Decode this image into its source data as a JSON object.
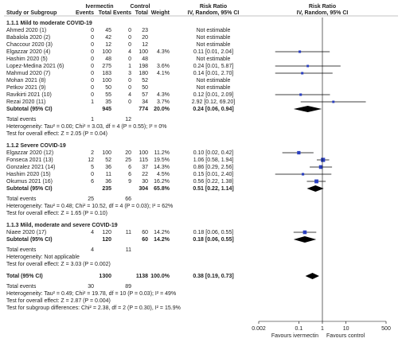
{
  "header": {
    "experimental": "Ivermectin",
    "control": "Control",
    "rr_text": "Risk Ratio",
    "rr_plot": "Risk Ratio",
    "columns": [
      "Study or Subgroup",
      "Events",
      "Total",
      "Events",
      "Total",
      "Weight",
      "IV, Random, 95% CI",
      "IV, Random, 95% CI"
    ]
  },
  "colors": {
    "study": "#2a3fc0",
    "diamond": "#000000"
  },
  "groups": [
    {
      "title": "1.1.1 Mild to moderate COVID-19",
      "studies": [
        {
          "study": "Ahmed 2020 (1)",
          "ie": 0,
          "it": 45,
          "ce": 0,
          "ct": 23,
          "ci": "Not estimable"
        },
        {
          "study": "Babalola 2020 (2)",
          "ie": 0,
          "it": 42,
          "ce": 0,
          "ct": 20,
          "ci": "Not estimable"
        },
        {
          "study": "Chaccour 2020 (3)",
          "ie": 0,
          "it": 12,
          "ce": 0,
          "ct": 12,
          "ci": "Not estimable"
        },
        {
          "study": "Elgazzar 2020 (4)",
          "ie": 0,
          "it": 100,
          "ce": 4,
          "ct": 100,
          "weight": {
            "value": 4.3,
            "label": "4.3%"
          },
          "ci": "0.11 [0.01, 2.04]",
          "rr": 0.11,
          "lo": 0.01,
          "hi": 2.04
        },
        {
          "study": "Hashim 2020 (5)",
          "ie": 0,
          "it": 48,
          "ce": 0,
          "ct": 48,
          "ci": "Not estimable"
        },
        {
          "study": "Lopez-Medina 2021 (6)",
          "ie": 0,
          "it": 275,
          "ce": 1,
          "ct": 198,
          "weight": {
            "value": 3.6,
            "label": "3.6%"
          },
          "ci": "0.24 [0.01, 5.87]",
          "rr": 0.24,
          "lo": 0.01,
          "hi": 5.87
        },
        {
          "study": "Mahmud 2020 (7)",
          "ie": 0,
          "it": 183,
          "ce": 3,
          "ct": 180,
          "weight": {
            "value": 4.1,
            "label": "4.1%"
          },
          "ci": "0.14 [0.01, 2.70]",
          "rr": 0.14,
          "lo": 0.01,
          "hi": 2.7
        },
        {
          "study": "Mohan 2021 (8)",
          "ie": 0,
          "it": 100,
          "ce": 0,
          "ct": 52,
          "ci": "Not estimable"
        },
        {
          "study": "Petkov 2021 (9)",
          "ie": 0,
          "it": 50,
          "ce": 0,
          "ct": 50,
          "ci": "Not estimable"
        },
        {
          "study": "Ravikirti 2021 (10)",
          "ie": 0,
          "it": 55,
          "ce": 4,
          "ct": 57,
          "weight": {
            "value": 4.3,
            "label": "4.3%"
          },
          "ci": "0.12 [0.01, 2.09]",
          "rr": 0.12,
          "lo": 0.01,
          "hi": 2.09
        },
        {
          "study": "Rezai 2020 (11)",
          "ie": 1,
          "it": 35,
          "ce": 0,
          "ct": 34,
          "weight": {
            "value": 3.7,
            "label": "3.7%"
          },
          "ci": "2.92 [0.12, 69.20]",
          "rr": 2.92,
          "lo": 0.12,
          "hi": 69.2
        }
      ],
      "subtotal": {
        "label": "Subtotal (95% CI)",
        "it": 945,
        "ct": 774,
        "weight": {
          "value": 20.0,
          "label": "20.0%"
        },
        "ci": "0.24 [0.06, 0.94]",
        "rr": 0.24,
        "lo": 0.06,
        "hi": 0.94
      },
      "events": {
        "label": "Total events",
        "ie": 1,
        "ce": 12
      },
      "heterogeneity": "Heterogeneity: Tau² = 0.00; Chi² = 3.03, df = 4 (P = 0.55); I² = 0%",
      "effect": "Test for overall effect: Z = 2.05 (P = 0.04)"
    },
    {
      "title": "1.1.2 Severe COVID-19",
      "studies": [
        {
          "study": "Elgazzar 2020 (12)",
          "ie": 2,
          "it": 100,
          "ce": 20,
          "ct": 100,
          "weight": {
            "value": 11.2,
            "label": "11.2%"
          },
          "ci": "0.10 [0.02, 0.42]",
          "rr": 0.1,
          "lo": 0.02,
          "hi": 0.42
        },
        {
          "study": "Fonseca 2021 (13)",
          "ie": 12,
          "it": 52,
          "ce": 25,
          "ct": 115,
          "weight": {
            "value": 19.5,
            "label": "19.5%"
          },
          "ci": "1.06 [0.58, 1.94]",
          "rr": 1.06,
          "lo": 0.58,
          "hi": 1.94
        },
        {
          "study": "Gonzalez 2021 (14)",
          "ie": 5,
          "it": 36,
          "ce": 6,
          "ct": 37,
          "weight": {
            "value": 14.3,
            "label": "14.3%"
          },
          "ci": "0.86 [0.29, 2.56]",
          "rr": 0.86,
          "lo": 0.29,
          "hi": 2.56
        },
        {
          "study": "Hashim 2020 (15)",
          "ie": 0,
          "it": 11,
          "ce": 6,
          "ct": 22,
          "weight": {
            "value": 4.5,
            "label": "4.5%"
          },
          "ci": "0.15 [0.01, 2.40]",
          "rr": 0.15,
          "lo": 0.01,
          "hi": 2.4
        },
        {
          "study": "Okumus 2021 (16)",
          "ie": 6,
          "it": 36,
          "ce": 9,
          "ct": 30,
          "weight": {
            "value": 16.2,
            "label": "16.2%"
          },
          "ci": "0.56 [0.22, 1.38]",
          "rr": 0.56,
          "lo": 0.22,
          "hi": 1.38
        }
      ],
      "subtotal": {
        "label": "Subtotal (95% CI)",
        "it": 235,
        "ct": 304,
        "weight": {
          "value": 65.8,
          "label": "65.8%"
        },
        "ci": "0.51 [0.22, 1.14]",
        "rr": 0.51,
        "lo": 0.22,
        "hi": 1.14
      },
      "events": {
        "label": "Total events",
        "ie": 25,
        "ce": 66
      },
      "heterogeneity": "Heterogeneity: Tau² = 0.48; Chi² = 10.52, df = 4 (P = 0.03); I² = 62%",
      "effect": "Test for overall effect: Z = 1.65 (P = 0.10)"
    },
    {
      "title": "1.1.3 Mild, moderate and severe COVID-19",
      "studies": [
        {
          "study": "Niaee 2020 (17)",
          "ie": 4,
          "it": 120,
          "ce": 11,
          "ct": 60,
          "weight": {
            "value": 14.2,
            "label": "14.2%"
          },
          "ci": "0.18 [0.06, 0.55]",
          "rr": 0.18,
          "lo": 0.06,
          "hi": 0.55
        }
      ],
      "subtotal": {
        "label": "Subtotal (95% CI)",
        "it": 120,
        "ct": 60,
        "weight": {
          "value": 14.2,
          "label": "14.2%"
        },
        "ci": "0.18 [0.06, 0.55]",
        "rr": 0.18,
        "lo": 0.06,
        "hi": 0.55
      },
      "events": {
        "label": "Total events",
        "ie": 4,
        "ce": 11
      },
      "heterogeneity": "Heterogeneity: Not applicable",
      "effect": "Test for overall effect: Z = 3.03 (P = 0.002)"
    }
  ],
  "overall": {
    "label": "Total (95% CI)",
    "it": 1300,
    "ct": 1138,
    "weight": {
      "value": 100.0,
      "label": "100.0%"
    },
    "ci": "0.38 [0.19, 0.73]",
    "rr": 0.38,
    "lo": 0.19,
    "hi": 0.73,
    "events": {
      "label": "Total events",
      "ie": 30,
      "ce": 89
    },
    "heterogeneity": "Heterogeneity: Tau² = 0.49; Chi² = 19.78, df = 10 (P = 0.03); I² = 49%",
    "effect": "Test for overall effect: Z = 2.87 (P = 0.004)",
    "subgroup": "Test for subgroup differences: Chi² = 2.38, df = 2 (P = 0.30), I² = 15.9%"
  },
  "axis": {
    "scale": "log",
    "xlim": [
      0.002,
      500
    ],
    "xticks": [
      0.002,
      0.1,
      1,
      10,
      500
    ],
    "favours_left": "Favours ivermectin",
    "favours_right": "Favours control"
  }
}
